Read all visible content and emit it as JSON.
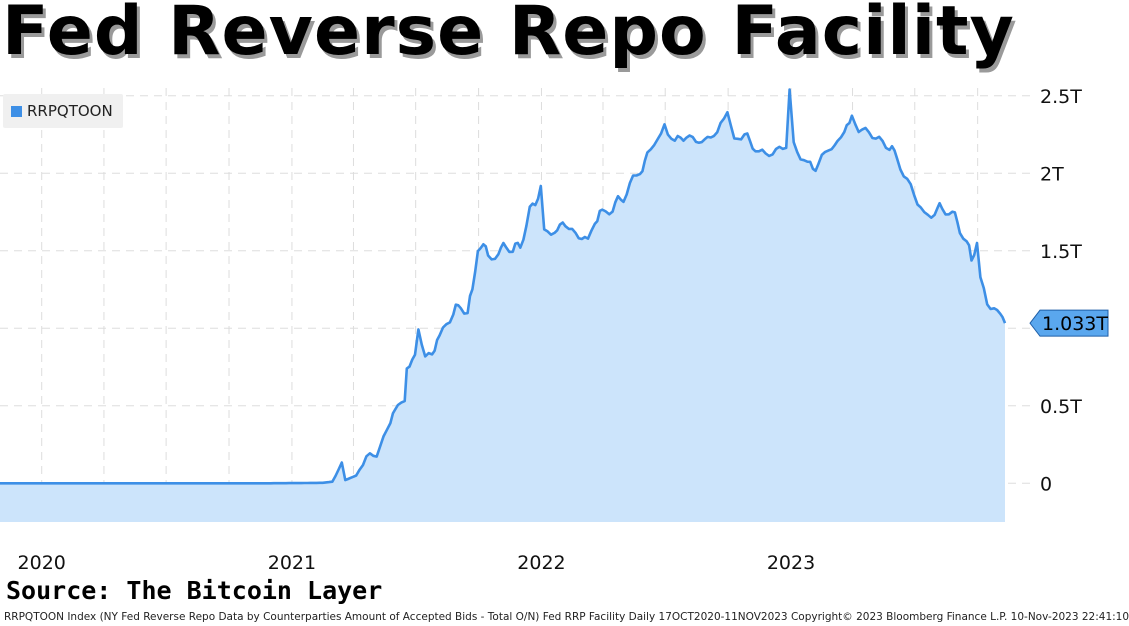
{
  "title": "Fed Reverse Repo Facility",
  "source": "Source: The Bitcoin Layer",
  "footer": "RRPQTOON Index (NY Fed Reverse Repo Data by Counterparties Amount of Accepted Bids - Total O/N) Fed RRP Facility  Daily 17OCT2020-11NOV2023  Copyright© 2023 Bloomberg Finance L.P.  10-Nov-2023 22:41:10",
  "colors": {
    "line": "#3d8fe6",
    "fill": "#cce4fb",
    "grid": "#dddddd",
    "label_bg": "#5aa7ee"
  },
  "chart_data": {
    "type": "area",
    "title": "",
    "xlabel": "",
    "ylabel": "",
    "legend": {
      "position": "top-left",
      "entries": [
        "RRPQTOON"
      ]
    },
    "grid": true,
    "x_range": [
      "2019-11-01",
      "2023-11-11"
    ],
    "ylim": [
      -0.25,
      2.55
    ],
    "y_ticks": [
      {
        "value": 0,
        "label": "0"
      },
      {
        "value": 0.5,
        "label": "0.5T"
      },
      {
        "value": 1.0,
        "label": "1T"
      },
      {
        "value": 1.5,
        "label": "1.5T"
      },
      {
        "value": 2.0,
        "label": "2T"
      },
      {
        "value": 2.5,
        "label": "2.5T"
      }
    ],
    "x_ticks": [
      {
        "date": "2020-01-01",
        "label": "2020"
      },
      {
        "date": "2021-01-01",
        "label": "2021"
      },
      {
        "date": "2022-01-01",
        "label": "2022"
      },
      {
        "date": "2023-01-01",
        "label": "2023"
      }
    ],
    "last_value_label": "1.033T",
    "series": [
      {
        "name": "RRPQTOON",
        "unit": "trillions USD",
        "points": [
          [
            "2019-11-01",
            0.0
          ],
          [
            "2020-03-01",
            0.0
          ],
          [
            "2020-06-01",
            0.0
          ],
          [
            "2020-09-01",
            0.0
          ],
          [
            "2020-12-01",
            0.0
          ],
          [
            "2021-01-10",
            0.001
          ],
          [
            "2021-02-15",
            0.003
          ],
          [
            "2021-03-01",
            0.01
          ],
          [
            "2021-03-15",
            0.12
          ],
          [
            "2021-03-20",
            0.02
          ],
          [
            "2021-04-05",
            0.05
          ],
          [
            "2021-04-20",
            0.15
          ],
          [
            "2021-05-05",
            0.2
          ],
          [
            "2021-05-15",
            0.3
          ],
          [
            "2021-05-25",
            0.42
          ],
          [
            "2021-06-05",
            0.5
          ],
          [
            "2021-06-15",
            0.55
          ],
          [
            "2021-06-18",
            0.75
          ],
          [
            "2021-06-30",
            0.8
          ],
          [
            "2021-07-05",
            0.99
          ],
          [
            "2021-07-15",
            0.8
          ],
          [
            "2021-07-25",
            0.85
          ],
          [
            "2021-08-05",
            0.95
          ],
          [
            "2021-08-15",
            1.05
          ],
          [
            "2021-08-25",
            1.1
          ],
          [
            "2021-09-05",
            1.15
          ],
          [
            "2021-09-15",
            1.1
          ],
          [
            "2021-09-22",
            1.25
          ],
          [
            "2021-09-30",
            1.5
          ],
          [
            "2021-10-08",
            1.55
          ],
          [
            "2021-10-15",
            1.45
          ],
          [
            "2021-10-30",
            1.48
          ],
          [
            "2021-11-10",
            1.55
          ],
          [
            "2021-11-20",
            1.5
          ],
          [
            "2021-12-01",
            1.55
          ],
          [
            "2021-12-10",
            1.65
          ],
          [
            "2021-12-15",
            1.75
          ],
          [
            "2021-12-31",
            1.9
          ],
          [
            "2022-01-05",
            1.6
          ],
          [
            "2022-01-20",
            1.62
          ],
          [
            "2022-02-05",
            1.68
          ],
          [
            "2022-02-20",
            1.62
          ],
          [
            "2022-03-10",
            1.55
          ],
          [
            "2022-03-20",
            1.7
          ],
          [
            "2022-03-31",
            1.75
          ],
          [
            "2022-04-15",
            1.78
          ],
          [
            "2022-05-01",
            1.85
          ],
          [
            "2022-05-15",
            1.95
          ],
          [
            "2022-05-25",
            2.0
          ],
          [
            "2022-06-05",
            2.1
          ],
          [
            "2022-06-15",
            2.2
          ],
          [
            "2022-06-25",
            2.25
          ],
          [
            "2022-06-30",
            2.33
          ],
          [
            "2022-07-15",
            2.2
          ],
          [
            "2022-08-01",
            2.25
          ],
          [
            "2022-08-15",
            2.2
          ],
          [
            "2022-09-01",
            2.22
          ],
          [
            "2022-09-15",
            2.25
          ],
          [
            "2022-09-30",
            2.43
          ],
          [
            "2022-10-10",
            2.22
          ],
          [
            "2022-10-25",
            2.25
          ],
          [
            "2022-11-10",
            2.15
          ],
          [
            "2022-11-25",
            2.1
          ],
          [
            "2022-12-10",
            2.15
          ],
          [
            "2022-12-25",
            2.2
          ],
          [
            "2022-12-30",
            2.55
          ],
          [
            "2023-01-05",
            2.2
          ],
          [
            "2023-01-15",
            2.12
          ],
          [
            "2023-01-25",
            2.05
          ],
          [
            "2023-02-10",
            2.05
          ],
          [
            "2023-02-25",
            2.15
          ],
          [
            "2023-03-10",
            2.2
          ],
          [
            "2023-03-20",
            2.28
          ],
          [
            "2023-03-31",
            2.35
          ],
          [
            "2023-04-10",
            2.27
          ],
          [
            "2023-04-25",
            2.25
          ],
          [
            "2023-05-10",
            2.23
          ],
          [
            "2023-05-25",
            2.18
          ],
          [
            "2023-06-05",
            2.1
          ],
          [
            "2023-06-15",
            2.0
          ],
          [
            "2023-06-25",
            1.9
          ],
          [
            "2023-07-05",
            1.8
          ],
          [
            "2023-07-15",
            1.72
          ],
          [
            "2023-07-30",
            1.75
          ],
          [
            "2023-08-10",
            1.78
          ],
          [
            "2023-08-25",
            1.75
          ],
          [
            "2023-09-05",
            1.65
          ],
          [
            "2023-09-15",
            1.55
          ],
          [
            "2023-09-22",
            1.45
          ],
          [
            "2023-09-30",
            1.55
          ],
          [
            "2023-10-05",
            1.3
          ],
          [
            "2023-10-15",
            1.15
          ],
          [
            "2023-10-25",
            1.13
          ],
          [
            "2023-11-03",
            1.1
          ],
          [
            "2023-11-10",
            1.033
          ]
        ]
      }
    ]
  }
}
